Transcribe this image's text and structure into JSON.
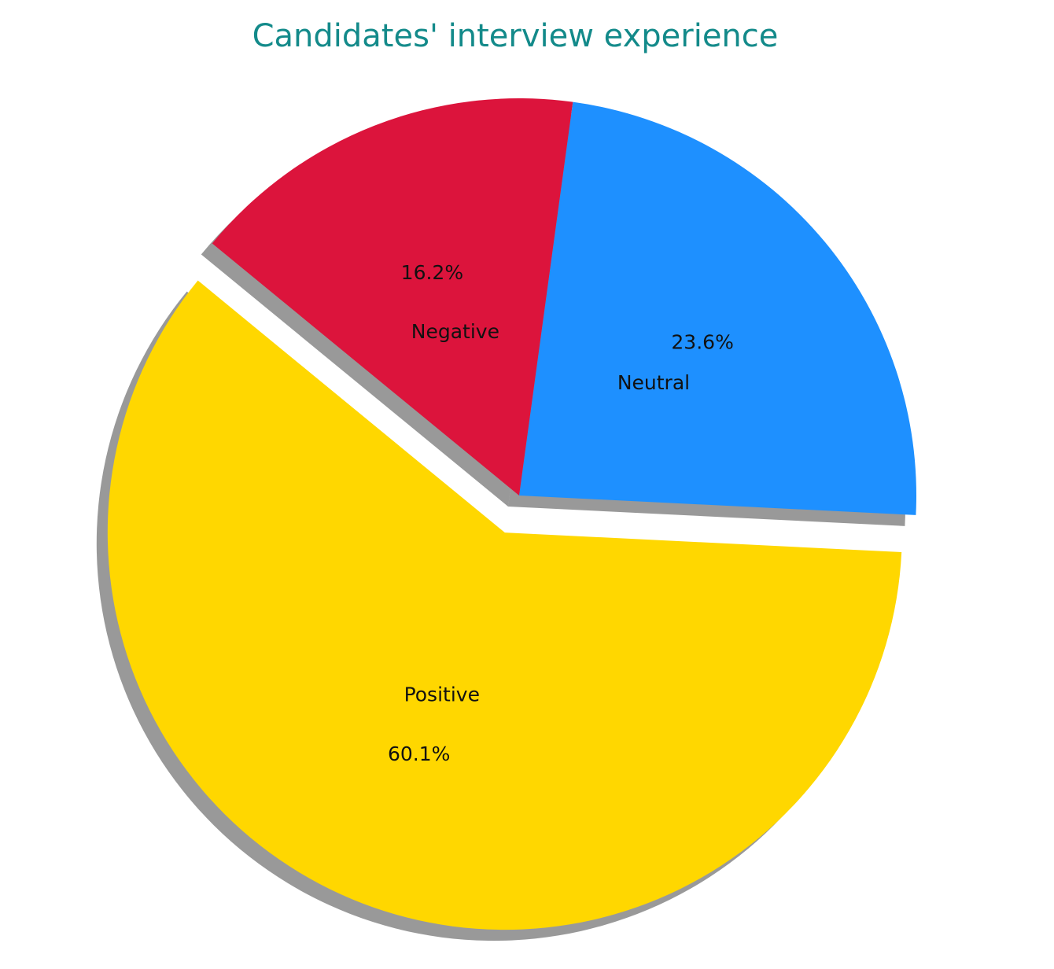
{
  "chart_data": {
    "type": "pie",
    "title": "Candidates' interview experience",
    "categories": [
      "Positive",
      "Neutral",
      "Negative"
    ],
    "values": [
      60.1,
      23.6,
      16.2
    ],
    "value_labels": [
      "60.1%",
      "23.6%",
      "16.2%"
    ],
    "colors": [
      "#ffd700",
      "#1e90ff",
      "#dc143c"
    ],
    "shadow": true
  }
}
